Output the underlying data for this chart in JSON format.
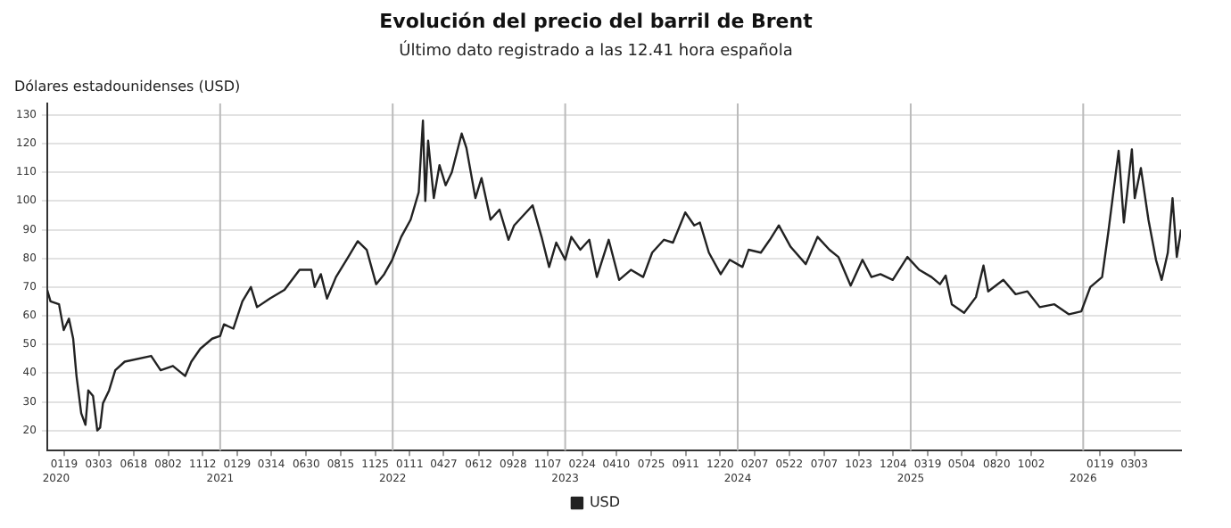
{
  "chart_data": {
    "type": "line",
    "title": "Evolución del precio del barril de Brent",
    "subtitle": "Último dato registrado a las 12.41 hora española",
    "ylabel": "Dólares estadounidenses (USD)",
    "series": [
      {
        "name": "USD",
        "color": "#222222",
        "x": [
          "2020-01-01",
          "2020-01-08",
          "2020-01-26",
          "2020-02-05",
          "2020-02-16",
          "2020-02-25",
          "2020-03-03",
          "2020-03-13",
          "2020-03-22",
          "2020-03-28",
          "2020-04-07",
          "2020-04-16",
          "2020-04-22",
          "2020-04-28",
          "2020-05-11",
          "2020-05-24",
          "2020-06-13",
          "2020-08-08",
          "2020-08-28",
          "2020-09-23",
          "2020-10-19",
          "2020-11-01",
          "2020-11-20",
          "2020-12-15",
          "2021-01-01",
          "2021-01-09",
          "2021-01-29",
          "2021-02-17",
          "2021-03-07",
          "2021-03-20",
          "2021-04-16",
          "2021-05-17",
          "2021-06-18",
          "2021-07-13",
          "2021-07-20",
          "2021-08-02",
          "2021-08-15",
          "2021-09-03",
          "2021-09-29",
          "2021-10-19",
          "2021-11-07",
          "2021-11-27",
          "2021-12-14",
          "2021-12-31",
          "2022-01-19",
          "2022-02-08",
          "2022-02-25",
          "2022-03-06",
          "2022-03-11",
          "2022-03-17",
          "2022-03-29",
          "2022-04-10",
          "2022-04-23",
          "2022-05-06",
          "2022-05-27",
          "2022-06-06",
          "2022-06-25",
          "2022-07-08",
          "2022-07-27",
          "2022-08-15",
          "2022-09-03",
          "2022-09-15",
          "2022-10-24",
          "2022-11-12",
          "2022-11-28",
          "2022-12-13",
          "2023-01-01",
          "2023-01-14",
          "2023-02-02",
          "2023-02-21",
          "2023-03-09",
          "2023-04-03",
          "2023-04-25",
          "2023-05-20",
          "2023-06-15",
          "2023-07-04",
          "2023-07-29",
          "2023-08-17",
          "2023-09-12",
          "2023-10-01",
          "2023-10-13",
          "2023-11-01",
          "2023-11-26",
          "2023-12-15",
          "2024-01-11",
          "2024-01-24",
          "2024-02-19",
          "2024-03-09",
          "2024-03-28",
          "2024-04-22",
          "2024-05-24",
          "2024-06-18",
          "2024-07-13",
          "2024-08-01",
          "2024-08-27",
          "2024-09-21",
          "2024-10-10",
          "2024-10-29",
          "2024-11-24",
          "2024-12-25",
          "2025-01-19",
          "2025-02-14",
          "2025-03-04",
          "2025-03-16",
          "2025-03-29",
          "2025-04-24",
          "2025-05-19",
          "2025-06-04",
          "2025-06-14",
          "2025-07-16",
          "2025-08-11",
          "2025-09-05",
          "2025-10-01",
          "2025-11-01",
          "2025-12-02",
          "2025-12-28",
          "2026-01-16",
          "2026-02-10",
          "2026-02-23",
          "2026-03-05",
          "2026-03-17",
          "2026-03-28",
          "2026-04-14",
          "2026-04-20",
          "2026-05-03",
          "2026-05-19",
          "2026-06-04",
          "2026-06-16",
          "2026-06-29",
          "2026-07-09",
          "2026-07-18",
          "2026-07-27"
        ],
        "values": [
          69,
          65,
          64,
          55,
          59,
          52,
          39,
          26,
          22,
          34,
          32,
          20,
          21,
          29.5,
          34,
          41,
          44,
          46,
          41,
          42.5,
          39,
          44,
          48.5,
          52,
          53,
          57,
          55.5,
          65,
          70,
          63,
          66,
          69,
          76,
          76,
          70,
          74.5,
          66,
          73.5,
          80.5,
          86,
          83,
          71,
          74.5,
          79.5,
          87.5,
          93.5,
          103,
          128,
          100,
          121,
          101,
          112.5,
          105.5,
          110,
          123.5,
          118.5,
          101,
          108,
          93.5,
          97,
          86.5,
          91.5,
          98.5,
          87.5,
          77,
          85.5,
          79.5,
          87.5,
          83,
          86.5,
          73.5,
          86.5,
          72.5,
          76,
          73.5,
          82,
          86.5,
          85.5,
          96,
          91.5,
          92.5,
          82,
          74.5,
          79.5,
          77,
          83,
          82,
          86.5,
          91.5,
          84,
          78,
          87.5,
          83,
          80.5,
          70.5,
          79.5,
          73.5,
          74.5,
          72.5,
          80.5,
          76,
          73.5,
          71,
          74,
          64,
          61,
          66.5,
          77.5,
          68.5,
          72.5,
          67.5,
          68.5,
          63,
          64,
          60.5,
          61.5,
          70,
          73.5,
          89,
          102,
          117.5,
          92.5,
          118,
          101,
          111.5,
          93.5,
          79.5,
          72.5,
          82,
          101,
          80.5,
          90
        ]
      }
    ],
    "xlim": [
      "2020-01-01",
      "2026-07-27"
    ],
    "xticks": [
      {
        "value": "2020-02-06",
        "label": "0119"
      },
      {
        "value": "2020-04-19",
        "label": "0303"
      },
      {
        "value": "2020-07-02",
        "label": "0618"
      },
      {
        "value": "2020-09-13",
        "label": "0802"
      },
      {
        "value": "2020-11-25",
        "label": "1112"
      },
      {
        "value": "2021-02-06",
        "label": "0129"
      },
      {
        "value": "2021-04-19",
        "label": "0314"
      },
      {
        "value": "2021-07-02",
        "label": "0630"
      },
      {
        "value": "2021-09-13",
        "label": "0815"
      },
      {
        "value": "2021-11-25",
        "label": "1125"
      },
      {
        "value": "2022-02-06",
        "label": "0111"
      },
      {
        "value": "2022-04-19",
        "label": "0427"
      },
      {
        "value": "2022-07-02",
        "label": "0612"
      },
      {
        "value": "2022-09-13",
        "label": "0928"
      },
      {
        "value": "2022-11-25",
        "label": "1107"
      },
      {
        "value": "2023-02-06",
        "label": "0224"
      },
      {
        "value": "2023-04-19",
        "label": "0410"
      },
      {
        "value": "2023-07-02",
        "label": "0725"
      },
      {
        "value": "2023-09-13",
        "label": "0911"
      },
      {
        "value": "2023-11-25",
        "label": "1220"
      },
      {
        "value": "2024-02-06",
        "label": "0207"
      },
      {
        "value": "2024-04-19",
        "label": "0522"
      },
      {
        "value": "2024-07-02",
        "label": "0707"
      },
      {
        "value": "2024-09-13",
        "label": "1023"
      },
      {
        "value": "2024-11-25",
        "label": "1204"
      },
      {
        "value": "2025-02-06",
        "label": "0319"
      },
      {
        "value": "2025-04-19",
        "label": "0504"
      },
      {
        "value": "2025-07-02",
        "label": "0820"
      },
      {
        "value": "2025-09-13",
        "label": "1002"
      },
      {
        "value": "2026-02-06",
        "label": "0119"
      },
      {
        "value": "2026-04-19",
        "label": "0303"
      }
    ],
    "x2lim": [
      "2020-01-01",
      "2026-07-27"
    ],
    "x2ticks": [
      {
        "value": "2020-01-20",
        "label": "2020"
      },
      {
        "value": "2021-01-01",
        "label": "2021"
      },
      {
        "value": "2022-01-01",
        "label": "2022"
      },
      {
        "value": "2023-01-01",
        "label": "2023"
      },
      {
        "value": "2024-01-01",
        "label": "2024"
      },
      {
        "value": "2025-01-01",
        "label": "2025"
      },
      {
        "value": "2026-01-01",
        "label": "2026"
      }
    ],
    "ylim": [
      13,
      134
    ],
    "yticks": [
      20,
      30,
      40,
      50,
      60,
      70,
      80,
      90,
      100,
      110,
      120,
      130
    ],
    "ref_lines": [
      {
        "axis": "x",
        "value": "2021-01-01",
        "color": "#bbbbbb"
      },
      {
        "axis": "x",
        "value": "2022-01-01",
        "color": "#bbbbbb"
      },
      {
        "axis": "x",
        "value": "2023-01-01",
        "color": "#bbbbbb"
      },
      {
        "axis": "x",
        "value": "2024-01-01",
        "color": "#bbbbbb"
      },
      {
        "axis": "x",
        "value": "2025-01-01",
        "color": "#bbbbbb"
      },
      {
        "axis": "x",
        "value": "2026-01-01",
        "color": "#bbbbbb"
      }
    ],
    "grid": "y",
    "legend": "bottom",
    "marker": "none",
    "line_style": "solid"
  }
}
